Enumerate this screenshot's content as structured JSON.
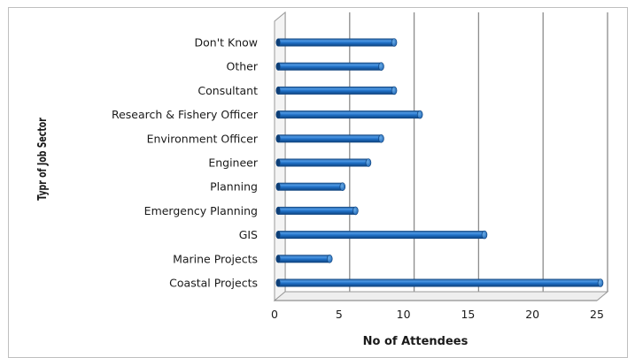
{
  "chart_data": {
    "type": "bar",
    "orientation": "horizontal",
    "style": "3d-cylinder",
    "categories": [
      "Don't Know",
      "Other",
      "Consultant",
      "Research & Fishery Officer",
      "Environment Officer",
      "Engineer",
      "Planning",
      "Emergency Planning",
      "GIS",
      "Marine Projects",
      "Coastal Projects"
    ],
    "values": [
      9,
      8,
      9,
      11,
      8,
      7,
      5,
      6,
      16,
      4,
      25
    ],
    "xlabel": "No of Attendees",
    "ylabel": "Typr of Job Sector",
    "xlim": [
      0,
      25
    ],
    "xticks": [
      0,
      5,
      10,
      15,
      20,
      25
    ],
    "grid": "vertical",
    "legend": "none",
    "colors": {
      "bar": "#1f6fc5",
      "bar_light": "#4f9ae6",
      "bar_dark": "#0d3f78",
      "grid": "#8c8c8c"
    }
  }
}
